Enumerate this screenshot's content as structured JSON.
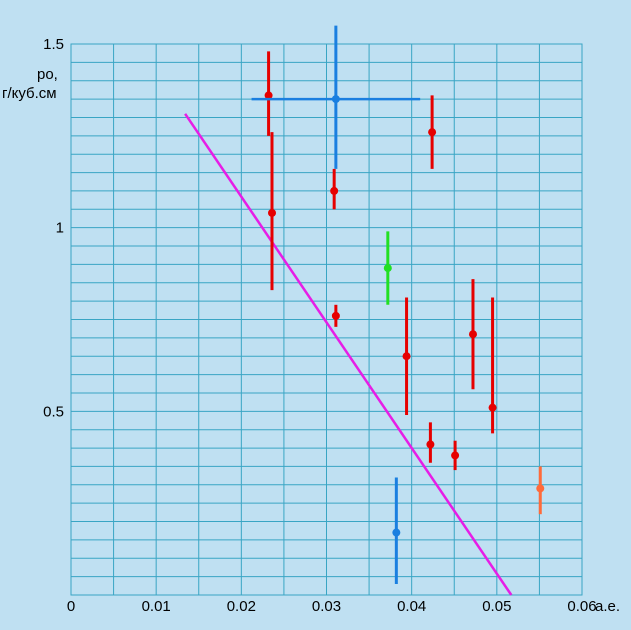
{
  "chart_data": {
    "type": "scatter",
    "title": "",
    "ylabel_line1": "ро,",
    "ylabel_line2": "г/куб.см",
    "xlabel": "",
    "x_unit": "а.е.",
    "xlim": [
      0,
      0.06
    ],
    "ylim": [
      0,
      1.5
    ],
    "x_ticks": [
      "0",
      "0.01",
      "0.02",
      "0.03",
      "0.04",
      "0.05",
      "0.06"
    ],
    "y_ticks": [
      "0.5",
      "1",
      "1.5"
    ],
    "grid": true,
    "colors": {
      "background": "#bfe0f2",
      "grid": "#39a5c4",
      "red": "#e60000",
      "blue": "#1a7fe0",
      "green": "#22e022",
      "orange": "#ff6a3a",
      "trend": "#e61ee6"
    },
    "points": [
      {
        "x": 0.0232,
        "y": 1.36,
        "yerr": [
          1.25,
          1.48
        ],
        "color": "red"
      },
      {
        "x": 0.0236,
        "y": 1.04,
        "yerr": [
          0.83,
          1.26
        ],
        "color": "red"
      },
      {
        "x": 0.0309,
        "y": 1.1,
        "yerr": [
          1.05,
          1.16
        ],
        "color": "red"
      },
      {
        "x": 0.0311,
        "y": 1.35,
        "yerr": [
          1.16,
          1.55
        ],
        "xerr": [
          0.0212,
          0.041
        ],
        "color": "blue"
      },
      {
        "x": 0.0311,
        "y": 0.76,
        "yerr": [
          0.73,
          0.79
        ],
        "color": "red"
      },
      {
        "x": 0.0372,
        "y": 0.89,
        "yerr": [
          0.79,
          0.99
        ],
        "color": "green"
      },
      {
        "x": 0.0394,
        "y": 0.65,
        "yerr": [
          0.49,
          0.81
        ],
        "color": "red"
      },
      {
        "x": 0.0424,
        "y": 1.26,
        "yerr": [
          1.16,
          1.36
        ],
        "color": "red"
      },
      {
        "x": 0.0422,
        "y": 0.41,
        "yerr": [
          0.36,
          0.47
        ],
        "color": "red"
      },
      {
        "x": 0.0451,
        "y": 0.38,
        "yerr": [
          0.34,
          0.42
        ],
        "color": "red"
      },
      {
        "x": 0.0472,
        "y": 0.71,
        "yerr": [
          0.56,
          0.86
        ],
        "color": "red"
      },
      {
        "x": 0.0495,
        "y": 0.51,
        "yerr": [
          0.44,
          0.81
        ],
        "color": "red"
      },
      {
        "x": 0.0382,
        "y": 0.17,
        "yerr": [
          0.03,
          0.32
        ],
        "color": "blue"
      },
      {
        "x": 0.0551,
        "y": 0.29,
        "yerr": [
          0.22,
          0.35
        ],
        "color": "orange"
      }
    ],
    "trend_line": {
      "x": [
        0.0134,
        0.0517
      ],
      "y": [
        1.31,
        0.0
      ],
      "color": "trend"
    }
  }
}
